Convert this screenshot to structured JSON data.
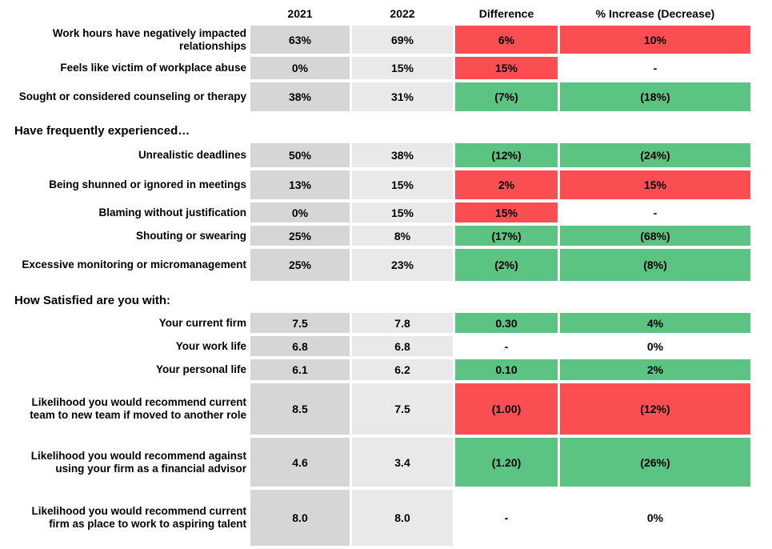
{
  "colors": {
    "negative": "#FA4E53",
    "positive": "#5CC483",
    "neutral": "#FFFFFF",
    "col_2021_bg": "#D6D6D6",
    "col_2022_bg": "#E9E9E9"
  },
  "chart_data": {
    "type": "table",
    "columns": [
      "2021",
      "2022",
      "Difference",
      "% Increase (Decrease)"
    ],
    "color_coding": {
      "red": "unfavorable change",
      "green": "favorable change",
      "white": "no change / not applicable"
    },
    "sections": [
      {
        "header": "",
        "rows": [
          {
            "label": "Work hours have negatively impacted relationships",
            "values": [
              "63%",
              "69%"
            ],
            "difference": "6%",
            "pct_change": "10%",
            "diff_tone": "negative",
            "pct_tone": "negative"
          },
          {
            "label": "Feels like victim of workplace abuse",
            "values": [
              "0%",
              "15%"
            ],
            "difference": "15%",
            "pct_change": "-",
            "diff_tone": "negative",
            "pct_tone": "neutral"
          },
          {
            "label": "Sought or considered counseling or therapy",
            "values": [
              "38%",
              "31%"
            ],
            "difference": "(7%)",
            "pct_change": "(18%)",
            "diff_tone": "positive",
            "pct_tone": "positive"
          }
        ]
      },
      {
        "header": "Have frequently experienced…",
        "rows": [
          {
            "label": "Unrealistic deadlines",
            "values": [
              "50%",
              "38%"
            ],
            "difference": "(12%)",
            "pct_change": "(24%)",
            "diff_tone": "positive",
            "pct_tone": "positive"
          },
          {
            "label": "Being shunned or ignored in meetings",
            "values": [
              "13%",
              "15%"
            ],
            "difference": "2%",
            "pct_change": "15%",
            "diff_tone": "negative",
            "pct_tone": "negative"
          },
          {
            "label": "Blaming without justification",
            "values": [
              "0%",
              "15%"
            ],
            "difference": "15%",
            "pct_change": "-",
            "diff_tone": "negative",
            "pct_tone": "neutral"
          },
          {
            "label": "Shouting or swearing",
            "values": [
              "25%",
              "8%"
            ],
            "difference": "(17%)",
            "pct_change": "(68%)",
            "diff_tone": "positive",
            "pct_tone": "positive"
          },
          {
            "label": "Excessive monitoring or micromanagement",
            "values": [
              "25%",
              "23%"
            ],
            "difference": "(2%)",
            "pct_change": "(8%)",
            "diff_tone": "positive",
            "pct_tone": "positive"
          }
        ]
      },
      {
        "header": "How Satisfied are you with:",
        "rows": [
          {
            "label": "Your current firm",
            "values": [
              "7.5",
              "7.8"
            ],
            "difference": "0.30",
            "pct_change": "4%",
            "diff_tone": "positive",
            "pct_tone": "positive"
          },
          {
            "label": "Your work life",
            "values": [
              "6.8",
              "6.8"
            ],
            "difference": "-",
            "pct_change": "0%",
            "diff_tone": "neutral",
            "pct_tone": "neutral"
          },
          {
            "label": "Your personal life",
            "values": [
              "6.1",
              "6.2"
            ],
            "difference": "0.10",
            "pct_change": "2%",
            "diff_tone": "positive",
            "pct_tone": "positive"
          },
          {
            "label": "Likelihood you would recommend current team to new team if moved to another role",
            "values": [
              "8.5",
              "7.5"
            ],
            "difference": "(1.00)",
            "pct_change": "(12%)",
            "diff_tone": "negative",
            "pct_tone": "negative"
          },
          {
            "label": "Likelihood you would recommend against using your firm as a financial advisor",
            "values": [
              "4.6",
              "3.4"
            ],
            "difference": "(1.20)",
            "pct_change": "(26%)",
            "diff_tone": "positive",
            "pct_tone": "positive"
          },
          {
            "label": "Likelihood you would recommend current firm as place to work to aspiring talent",
            "values": [
              "8.0",
              "8.0"
            ],
            "difference": "-",
            "pct_change": "0%",
            "diff_tone": "neutral",
            "pct_tone": "neutral"
          }
        ]
      }
    ]
  }
}
